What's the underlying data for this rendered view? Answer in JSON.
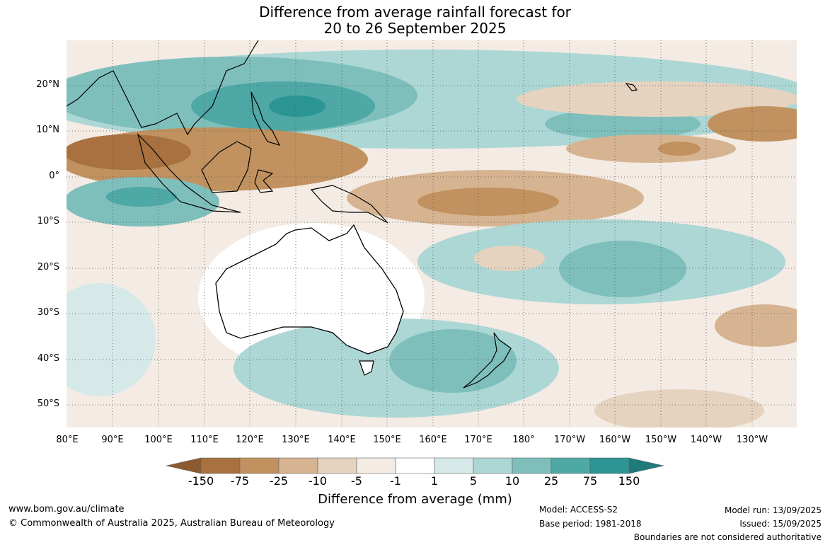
{
  "title_line1": "Difference from average rainfall forecast for",
  "title_line2": "20 to 26 September 2025",
  "lat_labels": [
    "20°N",
    "10°N",
    "0°",
    "10°S",
    "20°S",
    "30°S",
    "40°S",
    "50°S"
  ],
  "lon_labels": [
    "80°E",
    "90°E",
    "100°E",
    "110°E",
    "120°E",
    "130°E",
    "140°E",
    "150°E",
    "160°E",
    "170°E",
    "180°",
    "170°W",
    "160°W",
    "150°W",
    "140°W",
    "130°W"
  ],
  "colorbar": {
    "ticks": [
      "-150",
      "-75",
      "-25",
      "-10",
      "-5",
      "-1",
      "1",
      "5",
      "10",
      "25",
      "75",
      "150"
    ],
    "colors": [
      "#8c5a2e",
      "#a8713f",
      "#c1925f",
      "#d6b491",
      "#e6d3bf",
      "#f3ebe4",
      "#ffffff",
      "#d5e9e8",
      "#acd7d5",
      "#7ebfbc",
      "#4ea8a6",
      "#2b9593",
      "#1f7a78"
    ],
    "title": "Difference from average (mm)"
  },
  "footer": {
    "website": "www.bom.gov.au/climate",
    "copyright": "© Commonwealth of Australia 2025, Australian Bureau of Meteorology",
    "model": "Model: ACCESS-S2",
    "base_period": "Base period: 1981-2018",
    "model_run": "Model run: 13/09/2025",
    "issued": "Issued: 15/09/2025",
    "disclaimer": "Boundaries are not considered authoritative"
  },
  "map_colors": {
    "dry_strong": "#a8713f",
    "dry_mid": "#c1925f",
    "dry_light": "#d6b491",
    "dry_faint": "#e6d3bf",
    "dry_trace": "#f3ebe4",
    "wet_trace": "#d5e9e8",
    "wet_light": "#acd7d5",
    "wet_mid": "#7ebfbc",
    "wet_strong": "#4ea8a6",
    "wet_max": "#2b9593"
  }
}
